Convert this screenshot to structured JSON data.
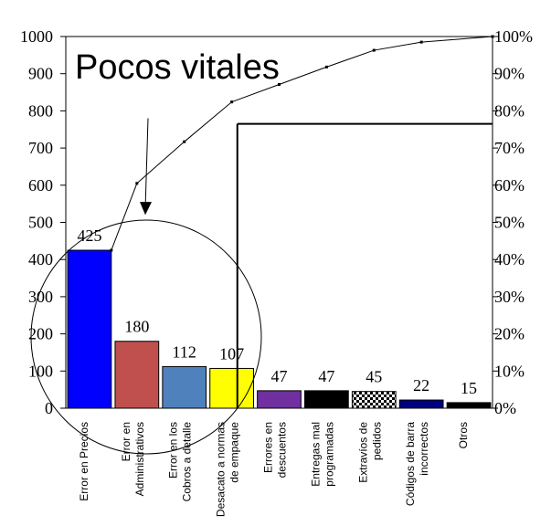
{
  "chart_data": {
    "type": "bar",
    "title": "Pocos vitales",
    "categories": [
      [
        "Error en Precios"
      ],
      [
        "Error en",
        "Administrativos"
      ],
      [
        "Error en los",
        "Cobros a detalle"
      ],
      [
        "Desacato a normas",
        "de empaque"
      ],
      [
        "Errores en",
        "descuentos"
      ],
      [
        "Entregas mal",
        "programadas"
      ],
      [
        "Extravíos de",
        "pedidos"
      ],
      [
        "Códigos de barra",
        "incorrectos"
      ],
      [
        "Otros"
      ]
    ],
    "values": [
      425,
      180,
      112,
      107,
      47,
      47,
      45,
      22,
      15
    ],
    "value_labels": [
      "425",
      "180",
      "112",
      "107",
      "47",
      "47",
      "45",
      "22",
      "15"
    ],
    "bar_colors": [
      "#0000ff",
      "#c0504d",
      "#4f81bd",
      "#ffff00",
      "#7030a0",
      "#000000",
      "checkered",
      "#000080",
      "#000000"
    ],
    "cumulative_percent": [
      42.5,
      60.5,
      71.7,
      82.4,
      87.1,
      91.8,
      96.3,
      98.5,
      100
    ],
    "left_axis": {
      "ylim": [
        0,
        1000
      ],
      "ticks": [
        "0",
        "100",
        "200",
        "300",
        "400",
        "500",
        "600",
        "700",
        "800",
        "900",
        "1000"
      ]
    },
    "right_axis": {
      "ylim": [
        0,
        100
      ],
      "ticks": [
        "0%",
        "10%",
        "20%",
        "30%",
        "40%",
        "50%",
        "60%",
        "70%",
        "80%",
        "90%",
        "100%"
      ]
    },
    "cutoff_percent": 76.5,
    "grid": false,
    "annotations": [
      "arrow pointing to circled vital few bars"
    ]
  }
}
